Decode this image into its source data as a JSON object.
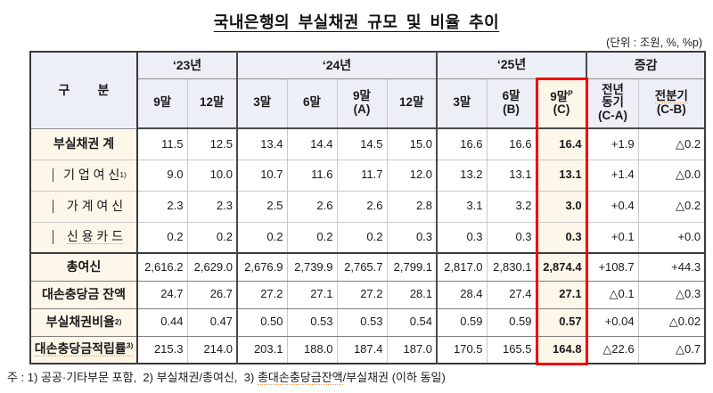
{
  "page": {
    "title": "국내은행의 부실채권 규모 및 비율 추이",
    "unit_note": "(단위 : 조원, %, %p)",
    "footnote_parts": [
      {
        "text": "주 : 1) 공공·기타부문 포함,  2) 부실채권/총여신,  3) "
      },
      {
        "text": "총대손충당금잔액",
        "squiggle": true
      },
      {
        "text": "/부실채권 (이하 동일)"
      }
    ]
  },
  "table": {
    "corner_label": "구        분",
    "year_groups": [
      {
        "label": "‘23년",
        "span": 2
      },
      {
        "label": "‘24년",
        "span": 4
      },
      {
        "label": "‘25년",
        "span": 3
      },
      {
        "label": "증감",
        "span": 2
      }
    ],
    "col_headers": [
      {
        "lines": [
          "9말"
        ]
      },
      {
        "lines": [
          "12말"
        ]
      },
      {
        "lines": [
          "3말"
        ]
      },
      {
        "lines": [
          "6말"
        ]
      },
      {
        "lines": [
          "9말",
          "(A)"
        ]
      },
      {
        "lines": [
          "12말"
        ]
      },
      {
        "lines": [
          "3말"
        ]
      },
      {
        "lines": [
          "6말",
          "(B)"
        ]
      },
      {
        "lines": [
          "9말",
          "(C)"
        ],
        "sup": "P",
        "highlight": true
      },
      {
        "lines": [
          "전년",
          "동기",
          "(C-A)"
        ]
      },
      {
        "lines": [
          "전분기",
          "(C-B)"
        ],
        "squiggle": true
      }
    ],
    "highlight_col_index": 8,
    "rows": [
      {
        "label": "부실채권 계",
        "bold": true,
        "values": [
          "11.5",
          "12.5",
          "13.4",
          "14.4",
          "14.5",
          "15.0",
          "16.6",
          "16.6",
          "16.4",
          "+1.9",
          "△0.2"
        ]
      },
      {
        "label": "기 업 여 신",
        "sup": "1)",
        "indent": true,
        "values": [
          "9.0",
          "10.0",
          "10.7",
          "11.6",
          "11.7",
          "12.0",
          "13.2",
          "13.1",
          "13.1",
          "+1.4",
          "△0.0"
        ]
      },
      {
        "label": "가 계 여 신",
        "indent": true,
        "values": [
          "2.3",
          "2.3",
          "2.5",
          "2.6",
          "2.6",
          "2.8",
          "3.1",
          "3.2",
          "3.0",
          "+0.4",
          "△0.2"
        ]
      },
      {
        "label": "신 용 카 드",
        "indent": true,
        "squiggle": true,
        "values": [
          "0.2",
          "0.2",
          "0.2",
          "0.2",
          "0.2",
          "0.3",
          "0.3",
          "0.3",
          "0.3",
          "+0.1",
          "+0.0"
        ]
      },
      {
        "label": "총여신",
        "bold": true,
        "strong_top": true,
        "values": [
          "2,616.2",
          "2,629.0",
          "2,676.9",
          "2,739.9",
          "2,765.7",
          "2,799.1",
          "2,817.0",
          "2,830.1",
          "2,874.4",
          "+108.7",
          "+44.3"
        ]
      },
      {
        "label": "대손충당금 잔액",
        "bold": true,
        "values": [
          "24.7",
          "26.7",
          "27.2",
          "27.1",
          "27.2",
          "28.1",
          "28.4",
          "27.4",
          "27.1",
          "△0.1",
          "△0.3"
        ]
      },
      {
        "label": "부실채권비율",
        "sup": "2)",
        "bold": true,
        "values": [
          "0.44",
          "0.47",
          "0.50",
          "0.53",
          "0.53",
          "0.54",
          "0.59",
          "0.59",
          "0.57",
          "+0.04",
          "△0.02"
        ]
      },
      {
        "label": "대손충당금적립률",
        "sup": "3)",
        "bold": true,
        "squiggle": true,
        "values": [
          "215.3",
          "214.0",
          "203.1",
          "188.0",
          "187.4",
          "187.0",
          "170.5",
          "165.5",
          "164.8",
          "△22.6",
          "△0.7"
        ]
      }
    ],
    "colors": {
      "header_bg": "#edeff6",
      "label_bg": "#fcf7e9",
      "highlight_bg": "#fcf7e9",
      "highlight_border": "#f20000"
    }
  }
}
